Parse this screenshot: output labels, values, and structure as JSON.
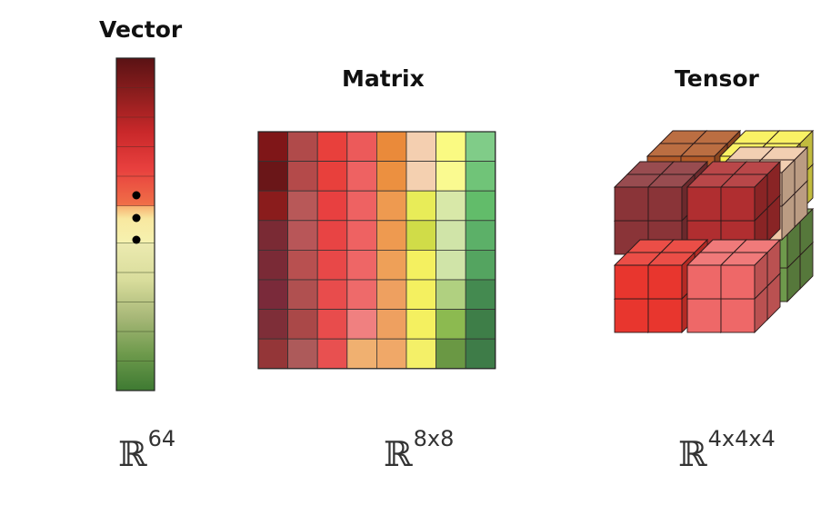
{
  "labels": {
    "vector": "Vector",
    "matrix": "Matrix",
    "tensor": "Tensor"
  },
  "spaces": {
    "vector": {
      "symbol": "ℝ",
      "dims": "64"
    },
    "matrix": {
      "symbol": "ℝ",
      "dims": "8x8"
    },
    "tensor": {
      "symbol": "ℝ",
      "dims": "4x4x4"
    }
  },
  "vector_colors": {
    "top": [
      "#5a1214",
      "#8e1e1e",
      "#c9282a",
      "#e8403e",
      "#f07048"
    ],
    "gap": "#f5e7a0",
    "bottom": [
      "#eceab0",
      "#d9dd9c",
      "#a8b878",
      "#6e9a4c",
      "#3e7a32"
    ]
  },
  "matrix_columns": [
    [
      "#7f1618",
      "#6a1618",
      "#8a1c1c",
      "#7a2a34",
      "#7a2a36",
      "#7a2a3a",
      "#7e2e38",
      "#943638"
    ],
    [
      "#b04a4a",
      "#b44a4a",
      "#b85858",
      "#b85658",
      "#b85050",
      "#b05050",
      "#aa4848",
      "#ad5a5a"
    ],
    [
      "#e8403c",
      "#e8403c",
      "#e84040",
      "#e84444",
      "#e84848",
      "#e84c4c",
      "#e84c4c",
      "#e85050"
    ],
    [
      "#ec5a5a",
      "#ee6262",
      "#ee6262",
      "#ee6262",
      "#ee6666",
      "#ee6a6a",
      "#f08080",
      "#f0b070"
    ],
    [
      "#ea8a3a",
      "#ec9040",
      "#ee9a50",
      "#ee9a50",
      "#eea058",
      "#eea060",
      "#eea060",
      "#f0a868"
    ],
    [
      "#f4cfb0",
      "#f4d0b0",
      "#e8ec58",
      "#d0dc48",
      "#f4f060",
      "#f4f060",
      "#f4f060",
      "#f4f068"
    ],
    [
      "#fafa82",
      "#fafa90",
      "#d8e8a8",
      "#d0e4a8",
      "#d0e4a8",
      "#b0d080",
      "#8cba50",
      "#6a9844"
    ],
    [
      "#80cc88",
      "#70c478",
      "#62bc6a",
      "#5cb068",
      "#54a460",
      "#448a50",
      "#3e7e48",
      "#3e7c48"
    ]
  ],
  "tensor_colors": {
    "back_top_left": "#b25a28",
    "back_top_right": "#f8f050",
    "back_mid_right": "#6e9a4c",
    "front_top_left": "#8a3438",
    "front_top_right": "#b02e30",
    "front_bottom_left": "#e8362e",
    "front_bottom_right": "#ee6868",
    "right_back_top": "#f0c8a8"
  }
}
